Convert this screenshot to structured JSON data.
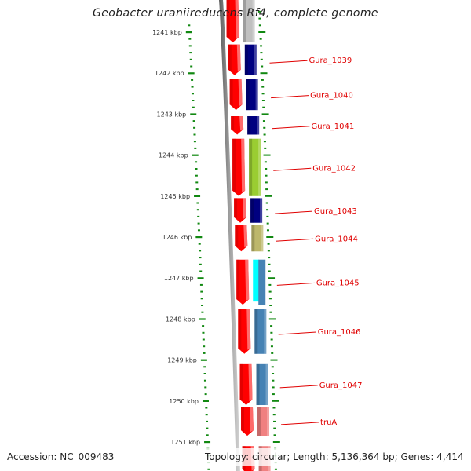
{
  "title": "Geobacter uraniireducens Rf4, complete genome",
  "accession_label": "Accession: NC_009483",
  "stats_label": "Topology: circular; Length: 5,136,364 bp; Genes: 4,414",
  "colors": {
    "backbone": "#808080",
    "forward_strand": "#ff0000",
    "tick": "#118811",
    "label": "#e00000"
  },
  "ruler": {
    "unit": "kbp",
    "ticks": [
      {
        "value": 1241,
        "label": "1241 kbp"
      },
      {
        "value": 1242,
        "label": "1242 kbp"
      },
      {
        "value": 1243,
        "label": "1243 kbp"
      },
      {
        "value": 1244,
        "label": "1244 kbp"
      },
      {
        "value": 1245,
        "label": "1245 kbp"
      },
      {
        "value": 1246,
        "label": "1246 kbp"
      },
      {
        "value": 1247,
        "label": "1247 kbp"
      },
      {
        "value": 1248,
        "label": "1248 kbp"
      },
      {
        "value": 1249,
        "label": "1249 kbp"
      },
      {
        "value": 1250,
        "label": "1250 kbp"
      },
      {
        "value": 1251,
        "label": "1251 kbp"
      }
    ],
    "minor_per_major": 5
  },
  "genes": [
    {
      "name": "",
      "start": 1240.2,
      "end": 1241.25,
      "color": "#c0c0c0"
    },
    {
      "name": "Gura_1039",
      "start": 1241.3,
      "end": 1242.05,
      "color": "#000080"
    },
    {
      "name": "Gura_1040",
      "start": 1242.15,
      "end": 1242.9,
      "color": "#000080"
    },
    {
      "name": "Gura_1041",
      "start": 1243.05,
      "end": 1243.5,
      "color": "#000080"
    },
    {
      "name": "Gura_1042",
      "start": 1243.6,
      "end": 1245.0,
      "color": "#9acd32"
    },
    {
      "name": "Gura_1043",
      "start": 1245.05,
      "end": 1245.65,
      "color": "#000080"
    },
    {
      "name": "Gura_1044",
      "start": 1245.7,
      "end": 1246.35,
      "color": "#bdb76b"
    },
    {
      "name": "Gura_1045",
      "start": 1246.55,
      "end": 1247.65,
      "color": "#4682b4",
      "overlap_color": "#00ffff"
    },
    {
      "name": "Gura_1046",
      "start": 1247.75,
      "end": 1248.85,
      "color": "#4682b4"
    },
    {
      "name": "Gura_1047",
      "start": 1249.1,
      "end": 1250.1,
      "color": "#4682b4"
    },
    {
      "name": "truA",
      "start": 1250.15,
      "end": 1250.85,
      "color": "#f08080"
    },
    {
      "name": "",
      "start": 1251.1,
      "end": 1251.8,
      "color": "#f08080"
    }
  ]
}
